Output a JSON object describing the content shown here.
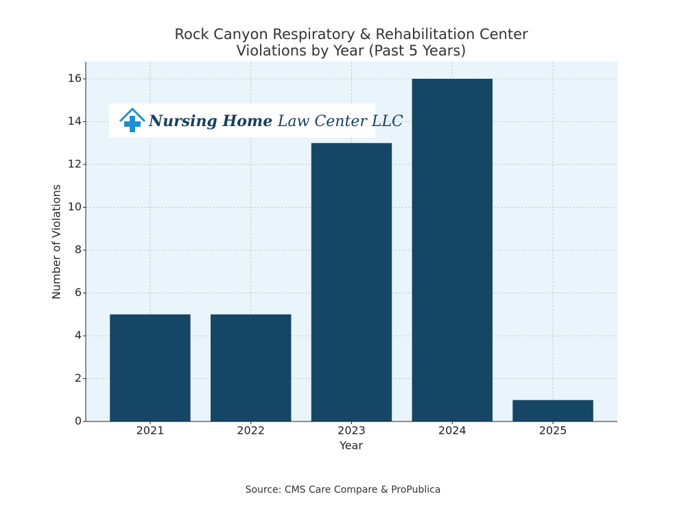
{
  "chart_data": {
    "type": "bar",
    "title": "Rock Canyon Respiratory & Rehabilitation Center",
    "subtitle": "Violations by Year (Past 5 Years)",
    "x_label": "Year",
    "y_label": "Number of Violations",
    "categories": [
      "2021",
      "2022",
      "2023",
      "2024",
      "2025"
    ],
    "values": [
      5,
      5,
      13,
      16,
      1
    ],
    "color": "#154666",
    "ylim": [
      0,
      16.8
    ],
    "yticks": [
      0,
      2,
      4,
      6,
      8,
      10,
      12,
      14,
      16
    ],
    "grid": true,
    "logo": {
      "bold": "Nursing Home",
      "rest": "Law Center LLC"
    },
    "source": "Source: CMS Care Compare & ProPublica"
  }
}
